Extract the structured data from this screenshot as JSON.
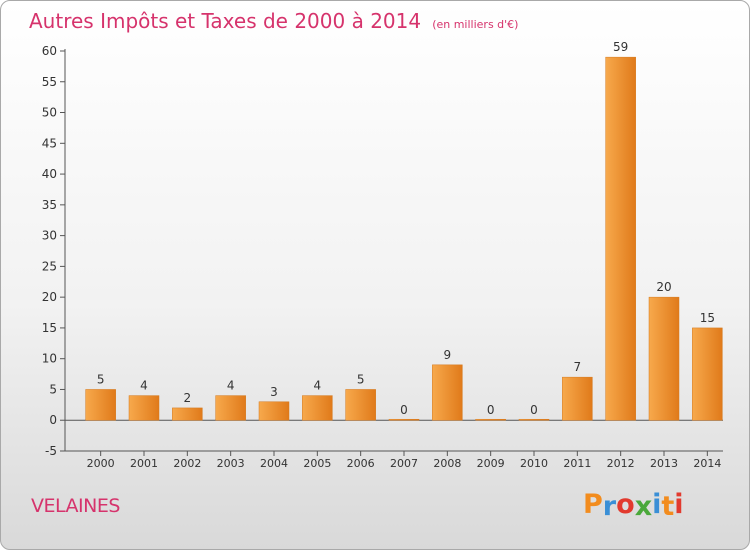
{
  "chart_data": {
    "type": "bar",
    "title": "Autres Impôts et Taxes de 2000 à 2014",
    "unit": "(en milliers d'€)",
    "categories": [
      "2000",
      "2001",
      "2002",
      "2003",
      "2004",
      "2005",
      "2006",
      "2007",
      "2008",
      "2009",
      "2010",
      "2011",
      "2012",
      "2013",
      "2014"
    ],
    "values": [
      5,
      4,
      2,
      4,
      3,
      4,
      5,
      0,
      9,
      0,
      0,
      7,
      59,
      20,
      15
    ],
    "data_labels": [
      "5",
      "4",
      "2",
      "4",
      "3",
      "4",
      "5",
      "0",
      "9",
      "0",
      "0",
      "7",
      "59",
      "20",
      "15"
    ],
    "y_ticks": [
      "-5",
      "0",
      "5",
      "10",
      "15",
      "20",
      "25",
      "30",
      "35",
      "40",
      "45",
      "50",
      "55",
      "60"
    ],
    "ylim": [
      -5,
      60
    ],
    "grid": false,
    "bar_color": "#f0922c"
  },
  "footer": {
    "commune": "VELAINES",
    "logo_letters": [
      "P",
      "r",
      "o",
      "x",
      "i",
      "t",
      "i"
    ],
    "logo_colors": [
      "#f28c1e",
      "#3a8fd6",
      "#e23a2e",
      "#4aa83a",
      "#3a8fd6",
      "#f28c1e",
      "#e23a2e"
    ]
  }
}
